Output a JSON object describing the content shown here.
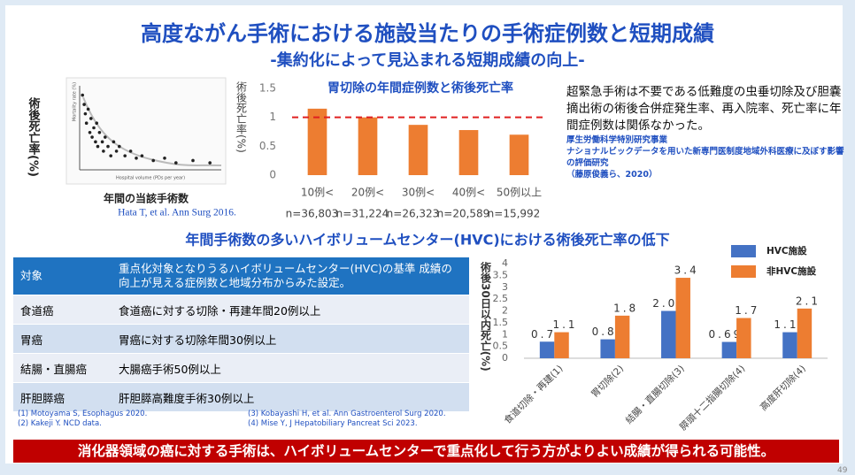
{
  "header": {
    "title": "高度ながん手術における施設当たりの手術症例数と短期成績",
    "subtitle": "-集約化によって見込まれる短期成績の向上-"
  },
  "chart_data": [
    {
      "type": "scatter",
      "x_label": "Hospital volume (PDs per year)",
      "y_label": "Mortality rate (%)",
      "outer_y_label": "術後死亡率(%)",
      "caption": "年間の当該手術数",
      "citation": "Hata T, et al. Ann Surg 2016.",
      "xlim": [
        0,
        250
      ],
      "ylim": [
        0,
        18
      ],
      "x": [
        5,
        8,
        10,
        12,
        15,
        18,
        20,
        22,
        25,
        28,
        30,
        32,
        35,
        40,
        42,
        45,
        50,
        55,
        60,
        65,
        70,
        80,
        90,
        100,
        110,
        130,
        150,
        170,
        200,
        230
      ],
      "values": [
        16,
        14,
        12,
        10,
        13,
        8,
        11,
        7,
        9,
        6,
        10,
        5,
        8,
        6,
        4,
        7,
        5,
        3,
        6,
        4,
        5,
        3,
        4,
        2.5,
        3,
        2,
        2.5,
        1.5,
        2,
        1.5
      ],
      "color": "#222222"
    },
    {
      "type": "bar",
      "title": "胃切除の年間症例数と術後死亡率",
      "y_label": "術後死亡率(%)",
      "categories": [
        "10例<",
        "20例<",
        "30例<",
        "40例<",
        "50例以上"
      ],
      "values": [
        1.15,
        1.0,
        0.87,
        0.78,
        0.7
      ],
      "annotations": [
        "n=36,803",
        "n=31,224",
        "n=26,323",
        "n=20,589",
        "n=15,992"
      ],
      "color": "#ed7d31",
      "reference_line": 1,
      "reference_color": "#e02020",
      "ylim": [
        0,
        1.5
      ],
      "yticks": [
        0,
        0.5,
        1,
        1.5
      ]
    },
    {
      "type": "grouped_bar",
      "y_label": "術後30日以内死亡(%)",
      "categories": [
        "食道切除・再建(1)",
        "胃切除(2)",
        "結腸・直腸切除(3)",
        "膵頭十二指腸切除(4)",
        "高度肝切除(4)"
      ],
      "series": [
        {
          "name": "HVC施設",
          "color": "#4472c4",
          "values": [
            0.7,
            0.8,
            2.0,
            0.69,
            1.1
          ],
          "value_labels": [
            "0.7",
            "0.8",
            "2.0",
            "0.69",
            "1.1"
          ]
        },
        {
          "name": "非HVC施設",
          "color": "#ed7d31",
          "values": [
            1.1,
            1.8,
            3.4,
            1.7,
            2.1
          ],
          "value_labels": [
            "1.1",
            "1.8",
            "3.4",
            "1.7",
            "2.1"
          ]
        }
      ],
      "ylim": [
        0,
        4
      ],
      "yticks": [
        0,
        0.5,
        1,
        1.5,
        2,
        2.5,
        3,
        3.5,
        4
      ],
      "legend": "top-right"
    }
  ],
  "text_block": {
    "paragraph": "超緊急手術は不要である低難度の虫垂切除及び胆嚢摘出術の術後合併症発生率、再入院率、死亡率に年間症例数は関係なかった。",
    "source": [
      "厚生労働科学特別研究事業",
      "ナショナルビックデータを用いた新専門医制度地域外科医療に及ぼす影響の評価研究",
      "（藤原俊義ら、2020）"
    ]
  },
  "section_heading": "年間手術数の多いハイボリュームセンター(HVC)における術後死亡率の低下",
  "table": {
    "header": [
      "対象",
      "重点化対象となりうるハイボリュームセンター(HVC)の基準 成績の向上が見える症例数と地域分布からみた設定。"
    ],
    "rows": [
      [
        "食道癌",
        "食道癌に対する切除・再建年間20例以上"
      ],
      [
        "胃癌",
        "胃癌に対する切除年間30例以上"
      ],
      [
        "結腸・直腸癌",
        "大腸癌手術50例以上"
      ],
      [
        "肝胆膵癌",
        "肝胆膵高難度手術30例以上"
      ]
    ]
  },
  "references": [
    "(1) Motoyama S, Esophagus 2020.",
    "(2) Kakeji Y. NCD data.",
    "(3) Kobayashi H, et al. Ann Gastroenterol Surg 2020.",
    "(4) Mise Y,  J Hepatobiliary Pancreat Sci 2023."
  ],
  "footer": "消化器領域の癌に対する手術は、ハイボリュームセンターで重点化して行う方がよりよい成績が得られる可能性。",
  "page_number": "49"
}
